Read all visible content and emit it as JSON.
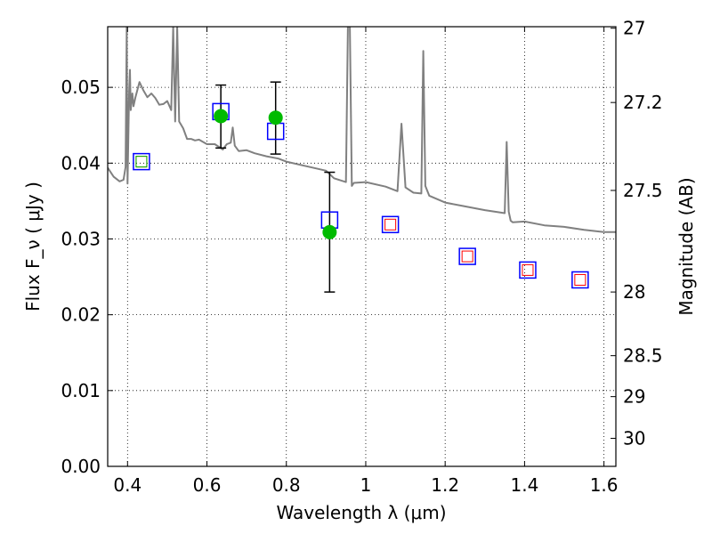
{
  "chart_data": {
    "type": "scatter",
    "xlabel": "Wavelength  λ (μm)",
    "ylabel": "Flux  F_ν  ( μJy )",
    "ylabel_right": "Magnitude (AB)",
    "xlim": [
      0.35,
      1.63
    ],
    "ylim": [
      0.0,
      0.058
    ],
    "grid": true,
    "x_ticks": [
      0.4,
      0.6,
      0.8,
      1.0,
      1.2,
      1.4,
      1.6
    ],
    "x_tick_labels": [
      "0.4",
      "0.6",
      "0.8",
      "1",
      "1.2",
      "1.4",
      "1.6"
    ],
    "y_ticks": [
      0.0,
      0.01,
      0.02,
      0.03,
      0.04,
      0.05
    ],
    "y_tick_labels": [
      "0.00",
      "0.01",
      "0.02",
      "0.03",
      "0.04",
      "0.05"
    ],
    "right_ticks": [
      {
        "flux": 0.0578,
        "label": "27"
      },
      {
        "flux": 0.048,
        "label": "27.2"
      },
      {
        "flux": 0.0364,
        "label": "27.5"
      },
      {
        "flux": 0.023,
        "label": "28"
      },
      {
        "flux": 0.0146,
        "label": "28.5"
      },
      {
        "flux": 0.0092,
        "label": "29"
      },
      {
        "flux": 0.0037,
        "label": "30"
      }
    ],
    "series": [
      {
        "kind": "spectrum",
        "color": "#808080",
        "x": [
          0.35,
          0.365,
          0.38,
          0.39,
          0.395,
          0.398,
          0.4,
          0.404,
          0.406,
          0.408,
          0.412,
          0.415,
          0.42,
          0.43,
          0.44,
          0.45,
          0.46,
          0.47,
          0.48,
          0.49,
          0.5,
          0.51,
          0.515,
          0.52,
          0.525,
          0.53,
          0.54,
          0.55,
          0.56,
          0.57,
          0.58,
          0.6,
          0.62,
          0.64,
          0.65,
          0.66,
          0.665,
          0.67,
          0.68,
          0.7,
          0.72,
          0.75,
          0.78,
          0.8,
          0.85,
          0.9,
          0.92,
          0.95,
          0.955,
          0.96,
          0.965,
          0.97,
          1.0,
          1.05,
          1.08,
          1.09,
          1.1,
          1.12,
          1.14,
          1.145,
          1.15,
          1.16,
          1.2,
          1.25,
          1.3,
          1.35,
          1.355,
          1.36,
          1.365,
          1.37,
          1.4,
          1.45,
          1.5,
          1.55,
          1.6,
          1.63
        ],
        "y": [
          0.0394,
          0.0382,
          0.0376,
          0.0378,
          0.0395,
          0.058,
          0.0373,
          0.0495,
          0.0523,
          0.047,
          0.0492,
          0.0475,
          0.0487,
          0.0507,
          0.0496,
          0.0487,
          0.0492,
          0.0486,
          0.0477,
          0.0478,
          0.0482,
          0.047,
          0.058,
          0.0455,
          0.058,
          0.0455,
          0.0446,
          0.0432,
          0.0432,
          0.043,
          0.0431,
          0.0425,
          0.0425,
          0.0418,
          0.0425,
          0.0427,
          0.0447,
          0.0423,
          0.0416,
          0.0417,
          0.0413,
          0.0409,
          0.0406,
          0.0402,
          0.0396,
          0.039,
          0.038,
          0.0375,
          0.058,
          0.058,
          0.037,
          0.0374,
          0.0375,
          0.0369,
          0.0363,
          0.0452,
          0.0368,
          0.0361,
          0.036,
          0.0548,
          0.037,
          0.0357,
          0.0348,
          0.0343,
          0.0338,
          0.0334,
          0.0428,
          0.0336,
          0.0324,
          0.0322,
          0.0323,
          0.0318,
          0.0316,
          0.0312,
          0.0309,
          0.0309
        ]
      },
      {
        "kind": "model-squares",
        "color": "#0000ff",
        "x": [
          0.435,
          0.635,
          0.773,
          0.909,
          1.062,
          1.256,
          1.408,
          1.54
        ],
        "y": [
          0.0402,
          0.0468,
          0.0442,
          0.0325,
          0.0319,
          0.0277,
          0.0259,
          0.0246
        ]
      },
      {
        "kind": "observed",
        "color": "#00bb00",
        "x": [
          0.635,
          0.773,
          0.909
        ],
        "y": [
          0.0462,
          0.046,
          0.0309
        ],
        "yerr_low": [
          0.0042,
          0.0048,
          0.0079
        ],
        "yerr_high": [
          0.0041,
          0.0047,
          0.0079
        ]
      },
      {
        "kind": "upper-limit-squares",
        "color": "#ff0000",
        "x": [
          0.435,
          1.062,
          1.256,
          1.408,
          1.54
        ],
        "y": [
          0.0402,
          0.0319,
          0.0277,
          0.0259,
          0.0246
        ]
      }
    ]
  }
}
